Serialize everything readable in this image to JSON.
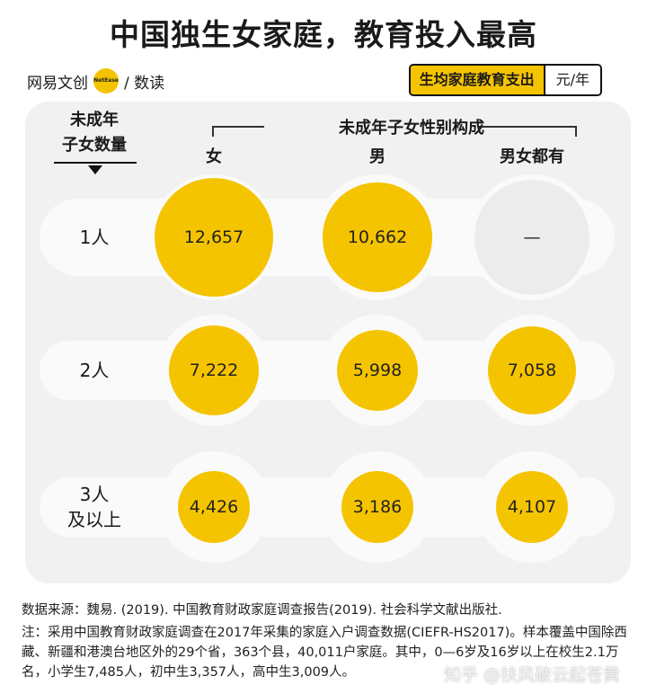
{
  "header": {
    "title": "中国独生女家庭，教育投入最高",
    "brand": "网易文创",
    "brand_badge": "NetEase",
    "brand_sub": "/ 数读",
    "legend_label": "生均家庭教育支出",
    "legend_unit": "元/年"
  },
  "table_headers": {
    "row_header": "未成年\n子女数量",
    "group_header": "未成年子女性别构成",
    "columns": [
      "女",
      "男",
      "男女都有"
    ]
  },
  "chart_data": {
    "type": "table",
    "columns": [
      "女",
      "男",
      "男女都有"
    ],
    "rows": [
      {
        "label": "1人",
        "values": [
          12657,
          10662,
          null
        ],
        "display": [
          "12,657",
          "10,662",
          "—"
        ]
      },
      {
        "label": "2人",
        "values": [
          7222,
          5998,
          7058
        ],
        "display": [
          "7,222",
          "5,998",
          "7,058"
        ]
      },
      {
        "label": "3人\n及以上",
        "values": [
          4426,
          3186,
          4107
        ],
        "display": [
          "4,426",
          "3,186",
          "4,107"
        ]
      }
    ],
    "bubble_color": "#f5c400",
    "empty_color": "#ececec"
  },
  "footer": {
    "source": "数据来源：魏易. (2019). 中国教育财政家庭调查报告(2019). 社会科学文献出版社.",
    "note": "注：采用中国教育财政家庭调查在2017年采集的家庭入户调查数据(CIEFR-HS2017)。样本覆盖中国除西藏、新疆和港澳台地区外的29个省，363个县，40,011户家庭。其中，0—6岁及16岁以上在校生2.1万名，小学生7,485人，初中生3,357人，高中生3,009人。"
  },
  "watermark": "知乎 @扶风破云起苍黄"
}
